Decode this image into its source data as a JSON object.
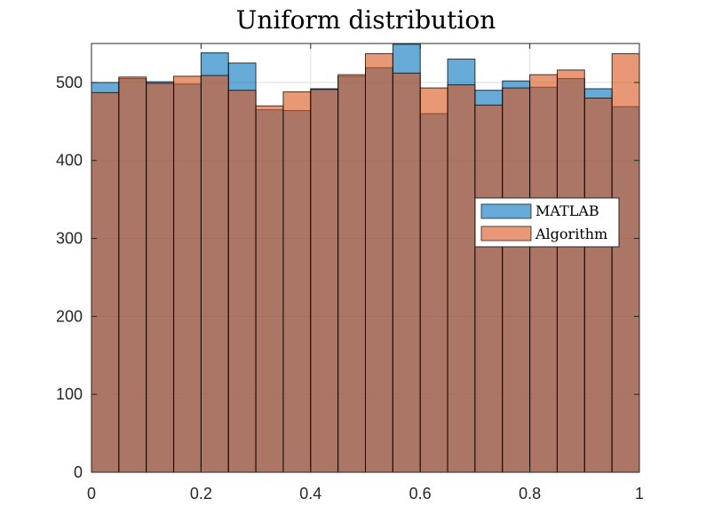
{
  "chart_data": {
    "type": "bar",
    "title": "Uniform distribution",
    "xlabel": "",
    "ylabel": "",
    "xlim": [
      0,
      1
    ],
    "ylim": [
      0,
      550
    ],
    "bin_edges": [
      0,
      0.05,
      0.1,
      0.15,
      0.2,
      0.25,
      0.3,
      0.35,
      0.4,
      0.45,
      0.5,
      0.55,
      0.6,
      0.65,
      0.7,
      0.75,
      0.8,
      0.85,
      0.9,
      0.95,
      1
    ],
    "x_ticks": [
      0,
      0.2,
      0.4,
      0.6,
      0.8,
      1
    ],
    "x_tick_labels": [
      "0",
      "0.2",
      "0.4",
      "0.6",
      "0.8",
      "1"
    ],
    "y_ticks": [
      0,
      100,
      200,
      300,
      400,
      500
    ],
    "y_tick_labels": [
      "0",
      "100",
      "200",
      "300",
      "400",
      "500"
    ],
    "grid": true,
    "legend_position": "right",
    "series": [
      {
        "name": "MATLAB",
        "color": "#0072BD",
        "values": [
          500,
          505,
          501,
          498,
          538,
          525,
          465,
          464,
          492,
          508,
          519,
          549,
          460,
          530,
          490,
          502,
          494,
          505,
          492,
          469
        ]
      },
      {
        "name": "Algorithm",
        "color": "#D95319",
        "values": [
          487,
          507,
          499,
          508,
          509,
          490,
          470,
          488,
          491,
          510,
          537,
          512,
          493,
          497,
          471,
          493,
          510,
          516,
          480,
          537
        ]
      }
    ]
  }
}
